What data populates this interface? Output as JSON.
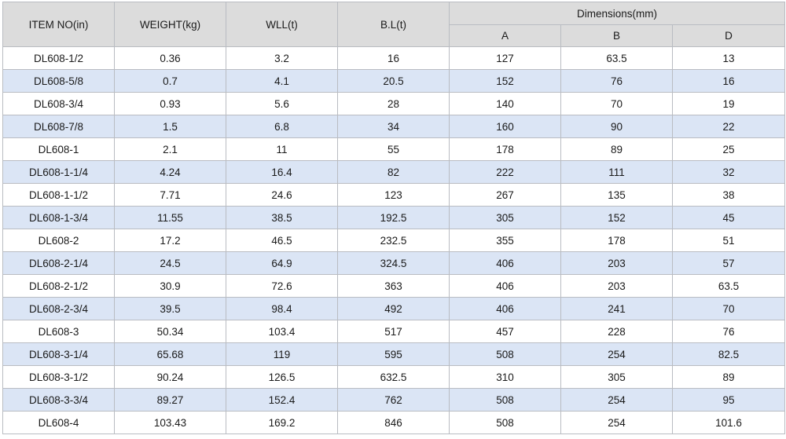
{
  "table": {
    "headers": {
      "item_no": "ITEM NO(in)",
      "weight": "WEIGHT(kg)",
      "wll": "WLL(t)",
      "bl": "B.L(t)",
      "dimensions": "Dimensions(mm)",
      "a": "A",
      "b": "B",
      "d": "D"
    },
    "rows": [
      {
        "item": "DL608-1/2",
        "weight": "0.36",
        "wll": "3.2",
        "bl": "16",
        "a": "127",
        "b": "63.5",
        "d": "13"
      },
      {
        "item": "DL608-5/8",
        "weight": "0.7",
        "wll": "4.1",
        "bl": "20.5",
        "a": "152",
        "b": "76",
        "d": "16"
      },
      {
        "item": "DL608-3/4",
        "weight": "0.93",
        "wll": "5.6",
        "bl": "28",
        "a": "140",
        "b": "70",
        "d": "19"
      },
      {
        "item": "DL608-7/8",
        "weight": "1.5",
        "wll": "6.8",
        "bl": "34",
        "a": "160",
        "b": "90",
        "d": "22"
      },
      {
        "item": "DL608-1",
        "weight": "2.1",
        "wll": "11",
        "bl": "55",
        "a": "178",
        "b": "89",
        "d": "25"
      },
      {
        "item": "DL608-1-1/4",
        "weight": "4.24",
        "wll": "16.4",
        "bl": "82",
        "a": "222",
        "b": "111",
        "d": "32"
      },
      {
        "item": "DL608-1-1/2",
        "weight": "7.71",
        "wll": "24.6",
        "bl": "123",
        "a": "267",
        "b": "135",
        "d": "38"
      },
      {
        "item": "DL608-1-3/4",
        "weight": "11.55",
        "wll": "38.5",
        "bl": "192.5",
        "a": "305",
        "b": "152",
        "d": "45"
      },
      {
        "item": "DL608-2",
        "weight": "17.2",
        "wll": "46.5",
        "bl": "232.5",
        "a": "355",
        "b": "178",
        "d": "51"
      },
      {
        "item": "DL608-2-1/4",
        "weight": "24.5",
        "wll": "64.9",
        "bl": "324.5",
        "a": "406",
        "b": "203",
        "d": "57"
      },
      {
        "item": "DL608-2-1/2",
        "weight": "30.9",
        "wll": "72.6",
        "bl": "363",
        "a": "406",
        "b": "203",
        "d": "63.5"
      },
      {
        "item": "DL608-2-3/4",
        "weight": "39.5",
        "wll": "98.4",
        "bl": "492",
        "a": "406",
        "b": "241",
        "d": "70"
      },
      {
        "item": "DL608-3",
        "weight": "50.34",
        "wll": "103.4",
        "bl": "517",
        "a": "457",
        "b": "228",
        "d": "76"
      },
      {
        "item": "DL608-3-1/4",
        "weight": "65.68",
        "wll": "119",
        "bl": "595",
        "a": "508",
        "b": "254",
        "d": "82.5"
      },
      {
        "item": "DL608-3-1/2",
        "weight": "90.24",
        "wll": "126.5",
        "bl": "632.5",
        "a": "310",
        "b": "305",
        "d": "89"
      },
      {
        "item": "DL608-3-3/4",
        "weight": "89.27",
        "wll": "152.4",
        "bl": "762",
        "a": "508",
        "b": "254",
        "d": "95"
      },
      {
        "item": "DL608-4",
        "weight": "103.43",
        "wll": "169.2",
        "bl": "846",
        "a": "508",
        "b": "254",
        "d": "101.6"
      }
    ]
  },
  "colors": {
    "header_bg": "#dcdcdc",
    "stripe_bg": "#dbe5f5",
    "row_bg": "#ffffff",
    "border": "#b9bcc2"
  }
}
